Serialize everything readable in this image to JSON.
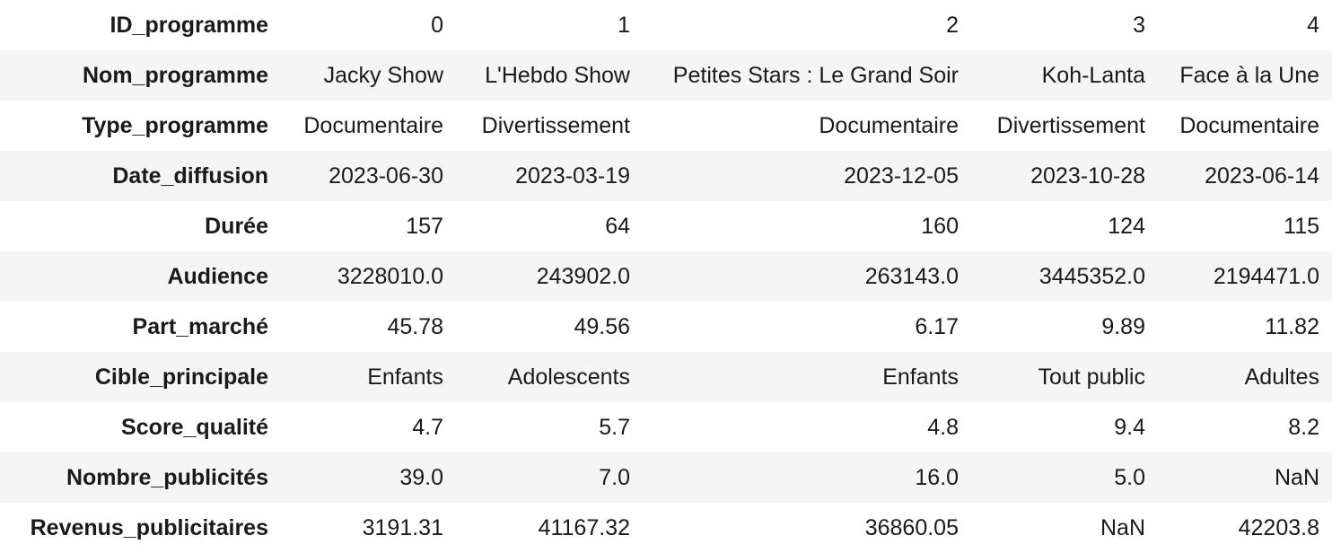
{
  "table": {
    "rows": [
      {
        "label": "ID_programme",
        "values": [
          "0",
          "1",
          "2",
          "3",
          "4"
        ]
      },
      {
        "label": "Nom_programme",
        "values": [
          "Jacky Show",
          "L'Hebdo Show",
          "Petites Stars : Le Grand Soir",
          "Koh-Lanta",
          "Face à la Une"
        ]
      },
      {
        "label": "Type_programme",
        "values": [
          "Documentaire",
          "Divertissement",
          "Documentaire",
          "Divertissement",
          "Documentaire"
        ]
      },
      {
        "label": "Date_diffusion",
        "values": [
          "2023-06-30",
          "2023-03-19",
          "2023-12-05",
          "2023-10-28",
          "2023-06-14"
        ]
      },
      {
        "label": "Durée",
        "values": [
          "157",
          "64",
          "160",
          "124",
          "115"
        ]
      },
      {
        "label": "Audience",
        "values": [
          "3228010.0",
          "243902.0",
          "263143.0",
          "3445352.0",
          "2194471.0"
        ]
      },
      {
        "label": "Part_marché",
        "values": [
          "45.78",
          "49.56",
          "6.17",
          "9.89",
          "11.82"
        ]
      },
      {
        "label": "Cible_principale",
        "values": [
          "Enfants",
          "Adolescents",
          "Enfants",
          "Tout public",
          "Adultes"
        ]
      },
      {
        "label": "Score_qualité",
        "values": [
          "4.7",
          "5.7",
          "4.8",
          "9.4",
          "8.2"
        ]
      },
      {
        "label": "Nombre_publicités",
        "values": [
          "39.0",
          "7.0",
          "16.0",
          "5.0",
          "NaN"
        ]
      },
      {
        "label": "Revenus_publicitaires",
        "values": [
          "3191.31",
          "41167.32",
          "36860.05",
          "NaN",
          "42203.8"
        ]
      }
    ]
  }
}
